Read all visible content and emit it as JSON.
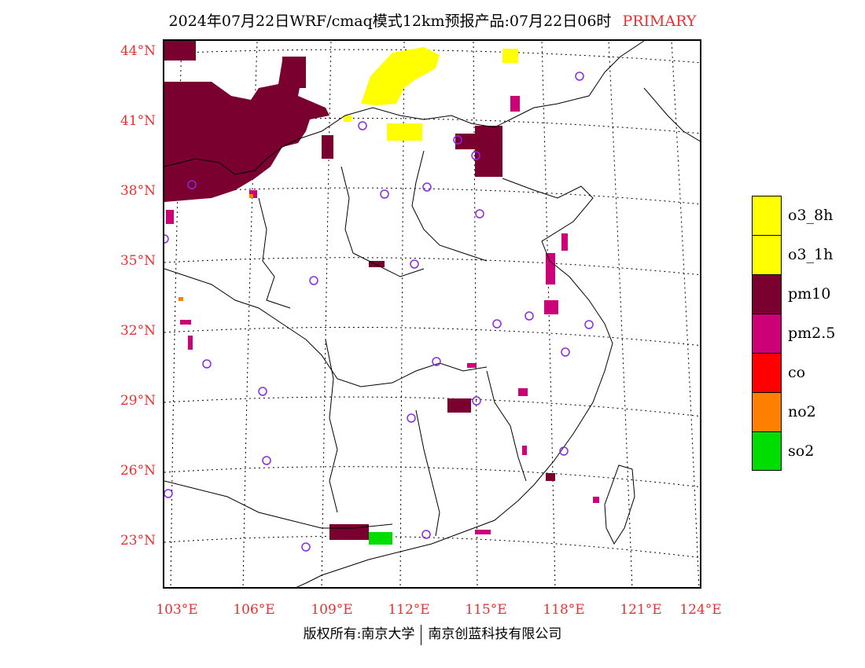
{
  "title": {
    "main": "2024年07月22日WRF/cmaq模式12km预报产品:07月22日06时",
    "tag": "PRIMARY"
  },
  "axes": {
    "lat_labels": [
      "44°N",
      "41°N",
      "38°N",
      "35°N",
      "32°N",
      "29°N",
      "26°N",
      "23°N"
    ],
    "lon_labels": [
      "103°E",
      "106°E",
      "109°E",
      "112°E",
      "115°E",
      "118°E",
      "121°E",
      "124°E"
    ]
  },
  "legend": {
    "items": [
      {
        "label": "o3_8h",
        "color": "#ffff00"
      },
      {
        "label": "o3_1h",
        "color": "#ffff00"
      },
      {
        "label": "pm10",
        "color": "#7a0030"
      },
      {
        "label": "pm2.5",
        "color": "#cc0077"
      },
      {
        "label": "co",
        "color": "#ff0000"
      },
      {
        "label": "no2",
        "color": "#ff8000"
      },
      {
        "label": "so2",
        "color": "#00dd00"
      }
    ]
  },
  "footer": {
    "left": "版权所有:南京大学",
    "right": "南京创蓝科技有限公司"
  },
  "map": {
    "region": "China (east)",
    "projection_grid": "lat/lon dotted graticule",
    "station_marker_color": "#8a2be2",
    "primary_pollutant_colors": {
      "pm10": "#7a0030",
      "pm2.5": "#cc0077",
      "o3": "#ffff00",
      "so2": "#00dd00",
      "no2": "#ff8000",
      "co": "#ff0000"
    }
  }
}
